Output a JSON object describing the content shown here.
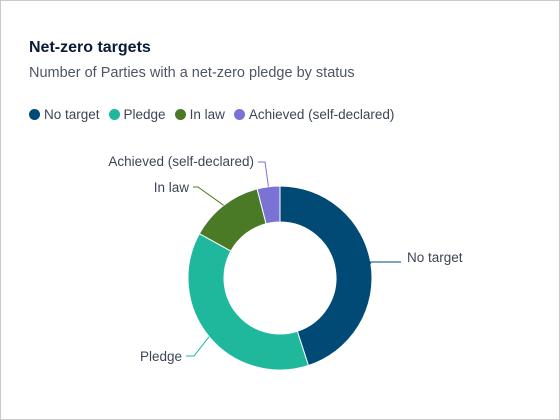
{
  "title": "Net-zero targets",
  "subtitle": "Number of Parties with a net-zero pledge by status",
  "chart_data": {
    "type": "pie",
    "donut": true,
    "legend_position": "top-left",
    "slices": [
      {
        "label": "No target",
        "percent": 45,
        "color": "#004a75"
      },
      {
        "label": "Pledge",
        "percent": 38,
        "color": "#1fb89d"
      },
      {
        "label": "In law",
        "percent": 13,
        "color": "#4a7a26"
      },
      {
        "label": "Achieved (self-declared)",
        "percent": 4,
        "color": "#7b72d6"
      }
    ]
  }
}
